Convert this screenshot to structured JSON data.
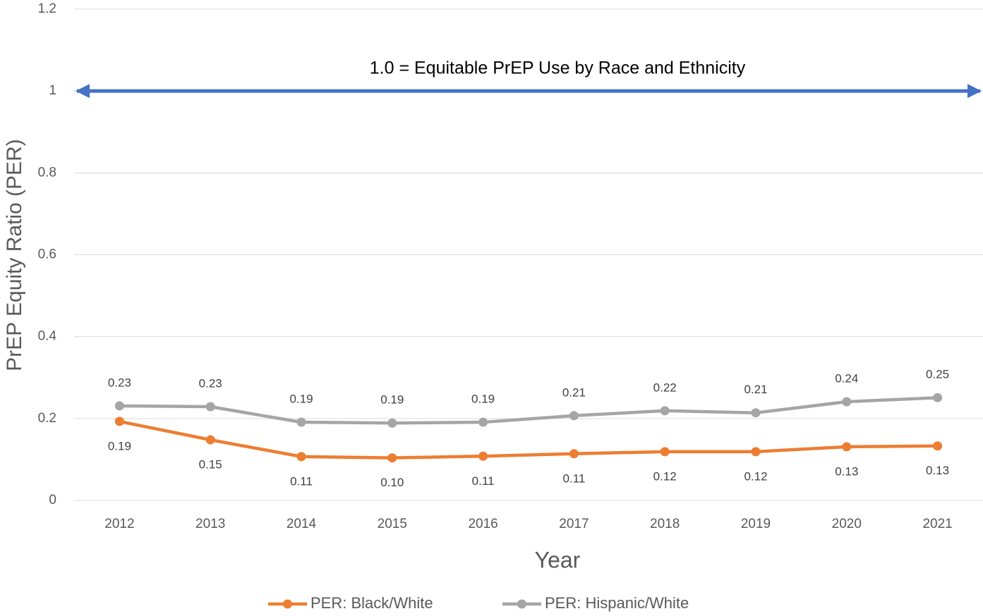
{
  "chart_data": {
    "type": "line",
    "categories": [
      "2012",
      "2013",
      "2014",
      "2015",
      "2016",
      "2017",
      "2018",
      "2019",
      "2020",
      "2021"
    ],
    "series": [
      {
        "name": "PER: Black/White",
        "color": "#ED7D31",
        "values": [
          0.193,
          0.148,
          0.107,
          0.104,
          0.108,
          0.114,
          0.119,
          0.119,
          0.131,
          0.133
        ],
        "value_labels": [
          "0.19",
          "0.15",
          "0.11",
          "0.10",
          "0.11",
          "0.11",
          "0.12",
          "0.12",
          "0.13",
          "0.13"
        ]
      },
      {
        "name": "PER: Hispanic/White",
        "color": "#A5A5A5",
        "values": [
          0.231,
          0.229,
          0.191,
          0.189,
          0.191,
          0.207,
          0.219,
          0.214,
          0.241,
          0.251
        ],
        "value_labels": [
          "0.23",
          "0.23",
          "0.19",
          "0.19",
          "0.19",
          "0.21",
          "0.22",
          "0.21",
          "0.24",
          "0.25"
        ]
      }
    ],
    "xlabel": "Year",
    "ylabel": "PrEP Equity Ratio (PER)",
    "ylim": [
      0,
      1.2
    ],
    "yticks": [
      0,
      0.2,
      0.4,
      0.6,
      0.8,
      1,
      1.2
    ],
    "grid": true,
    "reference_line": 1,
    "reference_color": "#4472C4",
    "annotation": "1.0 = Equitable PrEP Use by Race and Ethnicity",
    "legend": "bottom"
  }
}
